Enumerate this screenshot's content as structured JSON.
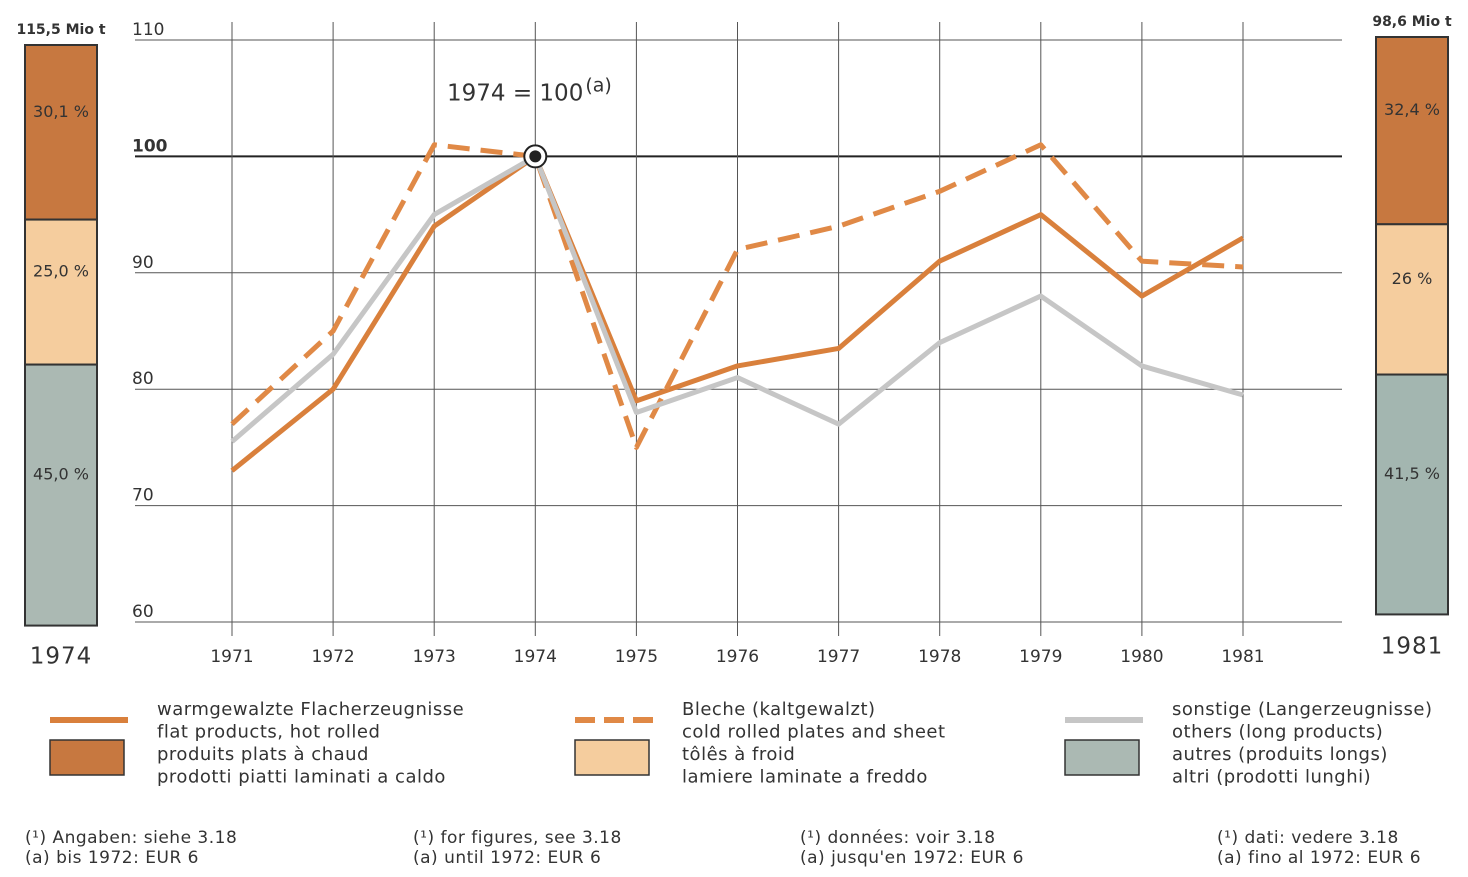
{
  "chart_data": [
    {
      "type": "line",
      "annotation": "1974 = 100",
      "annotation_sup": "(a)",
      "x": [
        1971,
        1972,
        1973,
        1974,
        1975,
        1976,
        1977,
        1978,
        1979,
        1980,
        1981
      ],
      "xlim": [
        1971,
        1981
      ],
      "xticks": [
        1971,
        1972,
        1973,
        1974,
        1975,
        1976,
        1977,
        1978,
        1979,
        1980,
        1981
      ],
      "ylim": [
        60,
        110
      ],
      "yticks": [
        60,
        70,
        80,
        90,
        100,
        110
      ],
      "grid": true,
      "series": [
        {
          "name": [
            "warmgewalzte Flacherzeugnisse",
            "flat products, hot rolled",
            "produits plats à chaud",
            "prodotti piatti laminati a caldo"
          ],
          "color": "#d9803c",
          "dash": false,
          "values": [
            73,
            80,
            94,
            100,
            79,
            82,
            83.5,
            91,
            95,
            88,
            93
          ]
        },
        {
          "name": [
            "Bleche (kaltgewalzt)",
            "cold rolled plates and sheet",
            "tôlês à froid",
            "lamiere laminate a freddo"
          ],
          "color": "#e08946",
          "dash": true,
          "values": [
            77,
            85,
            101,
            100,
            75,
            92,
            94,
            97,
            101,
            91,
            90.5
          ]
        },
        {
          "name": [
            "sonstige (Langerzeugnisse)",
            "others (long products)",
            "autres (produits longs)",
            "altri (prodotti lunghi)"
          ],
          "color": "#c6c6c6",
          "dash": false,
          "values": [
            75.5,
            83,
            95,
            100,
            78,
            81,
            77,
            84,
            88,
            82,
            79.5
          ]
        }
      ]
    },
    {
      "type": "stacked_bar",
      "title": "115,5 Mio t",
      "categories": [
        "1974"
      ],
      "ylim": [
        0,
        100
      ],
      "series": [
        {
          "color": "#c77840",
          "values": [
            30.1
          ],
          "value_labels": [
            "30,1 %"
          ]
        },
        {
          "color": "#f5cd9e",
          "values": [
            25.0
          ],
          "value_labels": [
            "25,0 %"
          ]
        },
        {
          "color": "#abb9b3",
          "values": [
            45.0
          ],
          "value_labels": [
            "45,0 %"
          ]
        }
      ]
    },
    {
      "type": "stacked_bar",
      "title": "98,6 Mio t",
      "categories": [
        "1981"
      ],
      "ylim": [
        0,
        100
      ],
      "series": [
        {
          "color": "#c77840",
          "values": [
            32.4
          ],
          "value_labels": [
            "32,4 %"
          ]
        },
        {
          "color": "#f5cd9e",
          "values": [
            26
          ],
          "value_labels": [
            "26 %"
          ]
        },
        {
          "color": "#a3b6b0",
          "values": [
            41.5
          ],
          "value_labels": [
            "41,5 %"
          ]
        }
      ]
    }
  ],
  "footnotes": [
    [
      "(¹) Angaben: siehe 3.18",
      "(a) bis 1972: EUR 6"
    ],
    [
      "(¹) for figures, see 3.18",
      "(a) until 1972: EUR 6"
    ],
    [
      "(¹) données: voir 3.18",
      "(a) jusqu'en 1972: EUR 6"
    ],
    [
      "(¹) dati: vedere 3.18",
      "(a) fino al 1972: EUR 6"
    ]
  ]
}
